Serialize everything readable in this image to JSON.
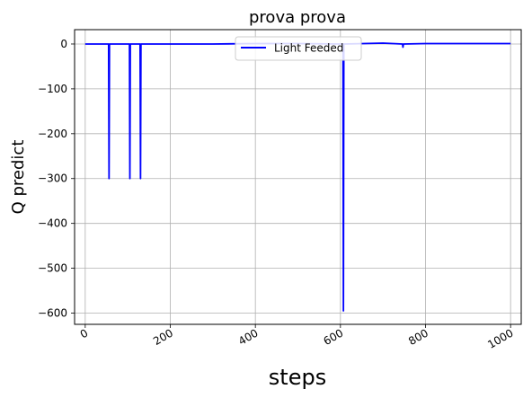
{
  "chart_data": {
    "type": "line",
    "title": "prova prova",
    "xlabel": "steps",
    "ylabel": "Q predict",
    "xlim": [
      -25,
      1025
    ],
    "ylim": [
      -625,
      32
    ],
    "xticks": [
      0,
      200,
      400,
      600,
      800,
      1000
    ],
    "yticks": [
      0,
      -100,
      -200,
      -300,
      -400,
      -500,
      -600
    ],
    "grid": true,
    "legend_position": "upper center",
    "series": [
      {
        "name": "Light Feeded",
        "color": "#0000ff",
        "x": [
          0,
          55,
          56,
          57,
          104,
          105,
          106,
          129,
          130,
          131,
          300,
          400,
          500,
          606,
          607,
          608,
          700,
          746,
          747,
          748,
          800,
          900,
          1000
        ],
        "y": [
          0,
          0,
          -300,
          0,
          0,
          -300,
          0,
          0,
          -300,
          0,
          0,
          1,
          1,
          0,
          -595,
          0,
          2,
          0,
          -7,
          0,
          1,
          1,
          1
        ]
      }
    ]
  }
}
